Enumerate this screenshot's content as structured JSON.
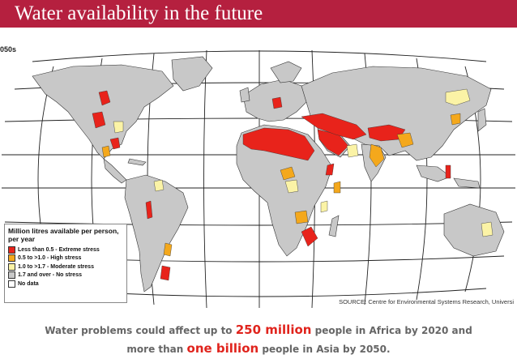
{
  "title": "Water availability in the future",
  "map": {
    "decade_label": "050s",
    "source": "SOURCE: Centre for Environmental Systems Research, Universi",
    "legend": {
      "title": "Million litres available per person, per year",
      "items": [
        {
          "label": "Less than 0.5 - Extreme stress",
          "color": "#e8231b"
        },
        {
          "label": "0.5 to >1.0 - High stress",
          "color": "#f4a81c"
        },
        {
          "label": "1.0 to >1.7 - Moderate stress",
          "color": "#fbf3a6"
        },
        {
          "label": "1.7 and over - No stress",
          "color": "#c8c8c8"
        },
        {
          "label": "No data",
          "color": "#ffffff"
        }
      ]
    }
  },
  "caption": {
    "line1_pre": "Water problems could affect up to ",
    "line1_hl": "250 million",
    "line1_post": " people in Africa by 2020 and",
    "line2_pre": "more than ",
    "line2_hl": "one billion",
    "line2_post": " people in Asia by 2050."
  },
  "colors": {
    "title_bar": "#b5203f",
    "extreme": "#e8231b",
    "high": "#f4a81c",
    "moderate": "#fbf3a6",
    "none": "#c8c8c8"
  }
}
